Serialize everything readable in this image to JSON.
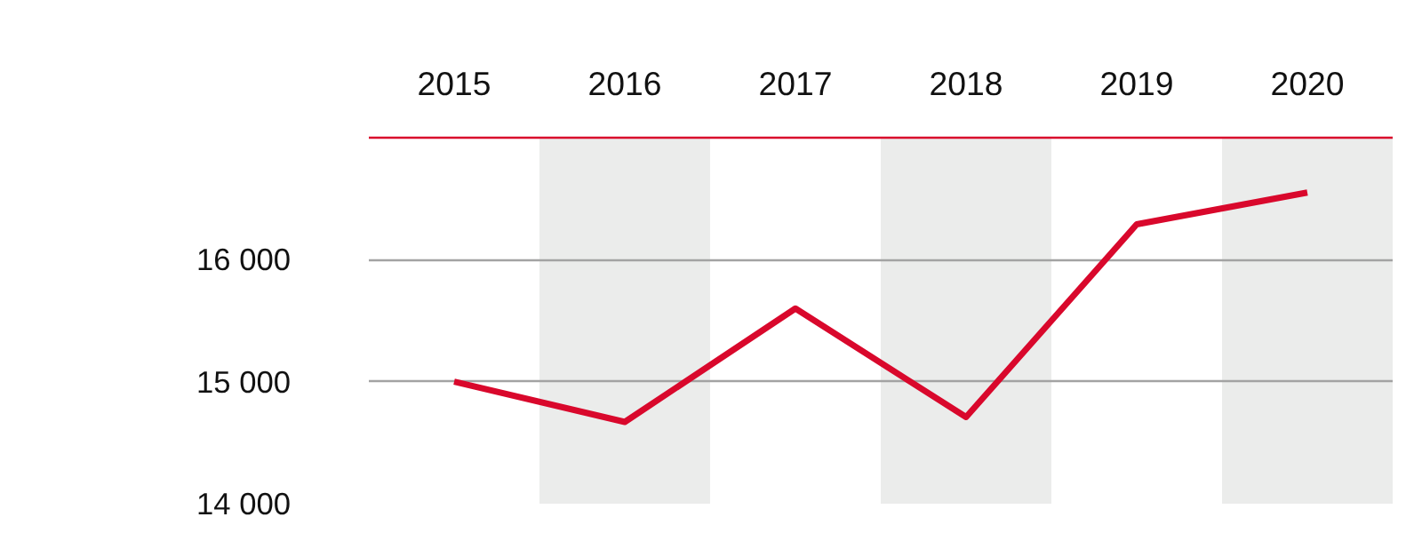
{
  "chart_data": {
    "type": "line",
    "categories": [
      "2015",
      "2016",
      "2017",
      "2018",
      "2019",
      "2020"
    ],
    "series": [
      {
        "color": "#d9082c",
        "values": [
          15000,
          14670,
          15600,
          14710,
          16290,
          16550
        ]
      }
    ],
    "ylim": [
      14000,
      17000
    ],
    "yticks": [
      {
        "value": 14000,
        "label": "14 000"
      },
      {
        "value": 15000,
        "label": "15 000"
      },
      {
        "value": 16000,
        "label": "16 000"
      }
    ],
    "grid": "y",
    "marker": "none",
    "line_style": "solid",
    "bands": [
      {
        "axis": "x",
        "from": "2016",
        "to": "2016",
        "color": "#ebeceb"
      },
      {
        "axis": "x",
        "from": "2018",
        "to": "2018",
        "color": "#ebeceb"
      },
      {
        "axis": "x",
        "from": "2020",
        "to": "2020",
        "color": "#ebeceb"
      }
    ]
  }
}
